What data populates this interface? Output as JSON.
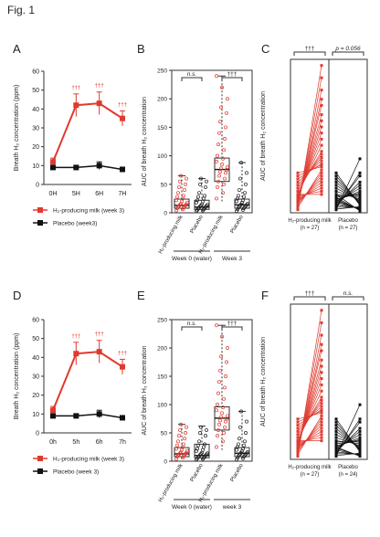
{
  "figure_title": "Fig. 1",
  "colors": {
    "h2": "#e03a2f",
    "placebo": "#111111",
    "h2_points": "#e03a2f",
    "placebo_points": "#222222"
  },
  "chart_data": [
    {
      "id": "A",
      "type": "line",
      "letter": "A",
      "ylabel": "Breath H₂ concentration (ppm)",
      "categories": [
        "0H",
        "5H",
        "6H",
        "7H"
      ],
      "ylim": [
        0,
        60
      ],
      "yticks": [
        0,
        10,
        20,
        30,
        40,
        50,
        60
      ],
      "series": [
        {
          "name": "H₂-producing  milk (week 3)",
          "key": "h2",
          "values": [
            12,
            42,
            43,
            35
          ],
          "errors": [
            2,
            6,
            6,
            4
          ]
        },
        {
          "name": "Placebo (week3)",
          "key": "placebo",
          "values": [
            9,
            9,
            10,
            8
          ],
          "errors": [
            1,
            1,
            2,
            1
          ]
        }
      ],
      "annotations": [
        "†††",
        "†††",
        "†††"
      ],
      "legend": "bottom"
    },
    {
      "id": "B",
      "type": "box",
      "letter": "B",
      "ylabel": "AUC of breath H₂ concentration",
      "ylim": [
        0,
        250
      ],
      "yticks": [
        0,
        50,
        100,
        150,
        200,
        250
      ],
      "categories": [
        "H₂-producing milk",
        "Placebo",
        "H₂-producing milk",
        "Placebo"
      ],
      "groups": [
        "Week 0 (water)",
        "Week 3"
      ],
      "boxes": [
        {
          "key": "h2",
          "q1": 8,
          "median": 13,
          "q3": 24,
          "min": 3,
          "max": 65
        },
        {
          "key": "placebo",
          "q1": 6,
          "median": 10,
          "q3": 22,
          "min": 2,
          "max": 60
        },
        {
          "key": "h2",
          "q1": 55,
          "median": 76,
          "q3": 96,
          "min": 20,
          "max": 240
        },
        {
          "key": "placebo",
          "q1": 8,
          "median": 14,
          "q3": 24,
          "min": 3,
          "max": 88
        }
      ],
      "points": [
        [
          4,
          6,
          8,
          9,
          10,
          11,
          12,
          13,
          14,
          15,
          16,
          18,
          20,
          22,
          25,
          28,
          30,
          35,
          40,
          45,
          50,
          55,
          60,
          65
        ],
        [
          3,
          4,
          5,
          6,
          7,
          8,
          9,
          10,
          11,
          12,
          13,
          14,
          15,
          18,
          20,
          22,
          25,
          28,
          30,
          35,
          45,
          50,
          55,
          60
        ],
        [
          25,
          35,
          45,
          50,
          55,
          60,
          65,
          70,
          72,
          75,
          78,
          80,
          85,
          90,
          95,
          100,
          110,
          120,
          130,
          140,
          150,
          160,
          175,
          185,
          200,
          220,
          240
        ],
        [
          3,
          5,
          6,
          8,
          9,
          10,
          11,
          12,
          13,
          14,
          15,
          16,
          18,
          20,
          22,
          25,
          28,
          30,
          35,
          40,
          50,
          60,
          70,
          88
        ]
      ],
      "comparisons": [
        {
          "from": 0,
          "to": 1,
          "label": "n.s."
        },
        {
          "from": 2,
          "to": 3,
          "label": "†††"
        }
      ]
    },
    {
      "id": "C",
      "type": "paired",
      "letter": "C",
      "ylabel": "AUC of breath H₂ concentration",
      "ylim": [
        0,
        250
      ],
      "columns": [
        {
          "label": "H₂-producing milk",
          "n": "(n = 27)",
          "key": "h2",
          "pairs": [
            [
              5,
              240
            ],
            [
              8,
              220
            ],
            [
              10,
              200
            ],
            [
              12,
              185
            ],
            [
              15,
              175
            ],
            [
              18,
              160
            ],
            [
              20,
              150
            ],
            [
              22,
              140
            ],
            [
              25,
              130
            ],
            [
              28,
              120
            ],
            [
              30,
              110
            ],
            [
              35,
              100
            ],
            [
              40,
              95
            ],
            [
              45,
              90
            ],
            [
              50,
              85
            ],
            [
              55,
              80
            ],
            [
              60,
              78
            ],
            [
              65,
              75
            ],
            [
              8,
              70
            ],
            [
              12,
              65
            ],
            [
              15,
              60
            ],
            [
              18,
              55
            ],
            [
              20,
              50
            ],
            [
              22,
              45
            ],
            [
              25,
              40
            ],
            [
              28,
              35
            ],
            [
              30,
              30
            ]
          ]
        },
        {
          "label": "Placebo",
          "n": "(n = 27)",
          "key": "placebo",
          "pairs": [
            [
              5,
              88
            ],
            [
              8,
              65
            ],
            [
              10,
              60
            ],
            [
              12,
              50
            ],
            [
              15,
              45
            ],
            [
              18,
              40
            ],
            [
              20,
              35
            ],
            [
              22,
              32
            ],
            [
              25,
              30
            ],
            [
              28,
              28
            ],
            [
              30,
              25
            ],
            [
              35,
              22
            ],
            [
              40,
              20
            ],
            [
              45,
              18
            ],
            [
              50,
              16
            ],
            [
              55,
              15
            ],
            [
              60,
              14
            ],
            [
              65,
              12
            ],
            [
              6,
              10
            ],
            [
              9,
              9
            ],
            [
              12,
              8
            ],
            [
              15,
              7
            ],
            [
              18,
              6
            ],
            [
              20,
              5
            ],
            [
              22,
              5
            ],
            [
              25,
              4
            ],
            [
              30,
              3
            ]
          ]
        }
      ],
      "brackets": [
        "†††",
        "p = 0.056"
      ]
    },
    {
      "id": "D",
      "type": "line",
      "letter": "D",
      "ylabel": "Breath H₂ concentration (ppm)",
      "categories": [
        "0h",
        "5h",
        "6h",
        "7h"
      ],
      "ylim": [
        0,
        60
      ],
      "yticks": [
        0,
        10,
        20,
        30,
        40,
        50,
        60
      ],
      "series": [
        {
          "name": "H₂-producing milk (week 3)",
          "key": "h2",
          "values": [
            12,
            42,
            43,
            35
          ],
          "errors": [
            2,
            6,
            6,
            4
          ]
        },
        {
          "name": "Placebo (week 3)",
          "key": "placebo",
          "values": [
            9,
            9,
            10,
            8
          ],
          "errors": [
            1,
            1,
            2,
            1
          ]
        }
      ],
      "annotations": [
        "†††",
        "†††",
        "†††"
      ],
      "legend": "bottom"
    },
    {
      "id": "E",
      "type": "box",
      "letter": "E",
      "ylabel": "AUC of breath H₂ concentration",
      "ylim": [
        0,
        250
      ],
      "yticks": [
        0,
        50,
        100,
        150,
        200,
        250
      ],
      "categories": [
        "H₂-producing milk",
        "Placebo",
        "H₂-producing milk",
        "Placebo"
      ],
      "groups": [
        "Week 0 (water)",
        "week 3"
      ],
      "boxes": [
        {
          "key": "h2",
          "q1": 8,
          "median": 13,
          "q3": 24,
          "min": 3,
          "max": 65
        },
        {
          "key": "placebo",
          "q1": 6,
          "median": 10,
          "q3": 30,
          "min": 2,
          "max": 62
        },
        {
          "key": "h2",
          "q1": 55,
          "median": 76,
          "q3": 96,
          "min": 20,
          "max": 240
        },
        {
          "key": "placebo",
          "q1": 8,
          "median": 14,
          "q3": 24,
          "min": 3,
          "max": 88
        }
      ],
      "points": [
        [
          4,
          6,
          8,
          9,
          10,
          11,
          12,
          13,
          14,
          15,
          16,
          18,
          20,
          22,
          25,
          28,
          30,
          35,
          40,
          45,
          50,
          55,
          60,
          65
        ],
        [
          3,
          4,
          5,
          6,
          7,
          8,
          9,
          10,
          11,
          12,
          13,
          14,
          15,
          18,
          20,
          22,
          25,
          28,
          30,
          35,
          45,
          50,
          55,
          60
        ],
        [
          25,
          35,
          45,
          50,
          55,
          60,
          65,
          70,
          72,
          75,
          78,
          80,
          85,
          90,
          95,
          100,
          110,
          120,
          130,
          140,
          150,
          160,
          175,
          185,
          200,
          220,
          240
        ],
        [
          3,
          5,
          6,
          8,
          9,
          10,
          11,
          12,
          13,
          14,
          15,
          16,
          18,
          20,
          22,
          25,
          28,
          30,
          35,
          40,
          50,
          60,
          70,
          88
        ]
      ],
      "comparisons": [
        {
          "from": 0,
          "to": 1,
          "label": "n.s."
        },
        {
          "from": 2,
          "to": 3,
          "label": "†††"
        }
      ]
    },
    {
      "id": "F",
      "type": "paired",
      "letter": "F",
      "ylabel": "AUC of breath H₂ concentration",
      "ylim": [
        0,
        250
      ],
      "columns": [
        {
          "label": "H₂-producing milk",
          "n": "(n = 27)",
          "key": "h2",
          "pairs": [
            [
              5,
              240
            ],
            [
              8,
              220
            ],
            [
              10,
              200
            ],
            [
              12,
              185
            ],
            [
              15,
              175
            ],
            [
              18,
              160
            ],
            [
              20,
              150
            ],
            [
              22,
              140
            ],
            [
              25,
              130
            ],
            [
              28,
              120
            ],
            [
              30,
              110
            ],
            [
              35,
              100
            ],
            [
              40,
              95
            ],
            [
              45,
              90
            ],
            [
              50,
              85
            ],
            [
              55,
              80
            ],
            [
              60,
              78
            ],
            [
              65,
              75
            ],
            [
              8,
              70
            ],
            [
              12,
              65
            ],
            [
              15,
              60
            ],
            [
              18,
              55
            ],
            [
              20,
              50
            ],
            [
              22,
              45
            ],
            [
              25,
              40
            ],
            [
              28,
              35
            ],
            [
              30,
              30
            ]
          ]
        },
        {
          "label": "Placebo",
          "n": "(n = 24)",
          "key": "placebo",
          "pairs": [
            [
              5,
              88
            ],
            [
              8,
              65
            ],
            [
              10,
              60
            ],
            [
              12,
              50
            ],
            [
              15,
              45
            ],
            [
              18,
              40
            ],
            [
              20,
              35
            ],
            [
              22,
              32
            ],
            [
              25,
              30
            ],
            [
              28,
              28
            ],
            [
              30,
              25
            ],
            [
              35,
              22
            ],
            [
              40,
              20
            ],
            [
              45,
              18
            ],
            [
              50,
              16
            ],
            [
              55,
              15
            ],
            [
              60,
              14
            ],
            [
              65,
              12
            ],
            [
              6,
              10
            ],
            [
              9,
              9
            ],
            [
              12,
              8
            ],
            [
              15,
              7
            ],
            [
              18,
              6
            ],
            [
              20,
              5
            ]
          ]
        }
      ],
      "brackets": [
        "†††",
        "n.s."
      ]
    }
  ]
}
